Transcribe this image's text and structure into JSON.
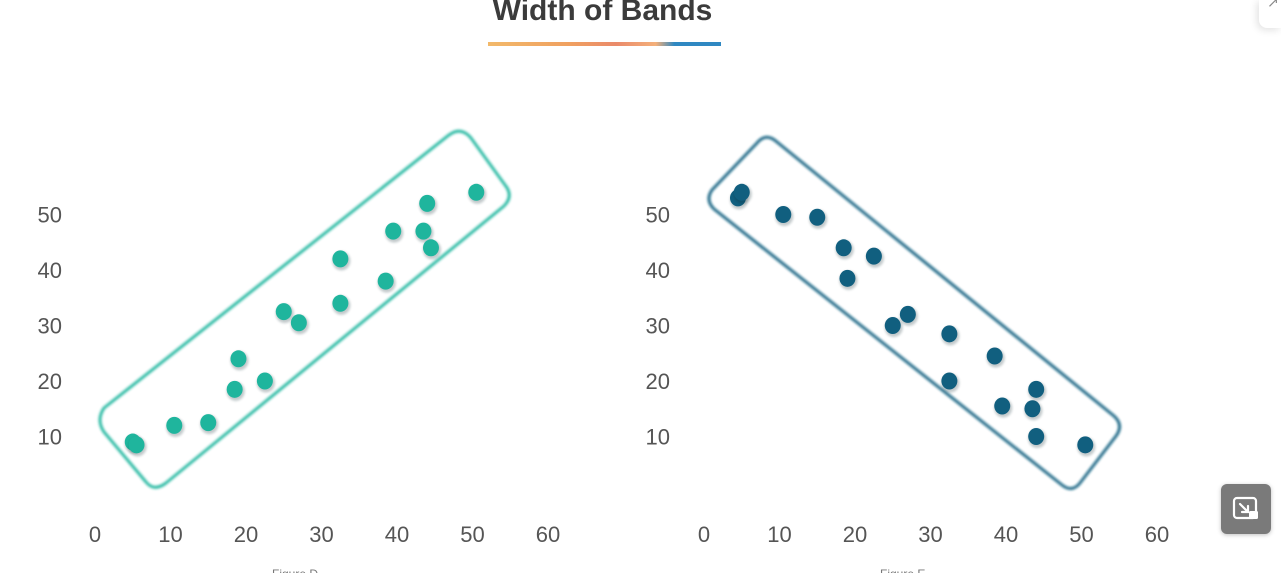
{
  "page": {
    "title": "Width of Bands"
  },
  "colors": {
    "left_chart": "#1fb59d",
    "left_axis": "#35b39a",
    "right_chart": "#115f7f",
    "right_axis": "#1f5d78",
    "title_text": "#3b3b3b"
  },
  "chart_data": [
    {
      "type": "scatter",
      "title": "",
      "caption": "Figure D",
      "xlabel": "",
      "ylabel": "",
      "xlim": [
        0,
        60
      ],
      "ylim": [
        0,
        57
      ],
      "x_ticks": [
        0,
        10,
        20,
        30,
        40,
        50,
        60
      ],
      "y_ticks": [
        10,
        20,
        30,
        40,
        50
      ],
      "grid": false,
      "band": "upward-sloping rounded band enclosing all points",
      "points": [
        {
          "x": 5,
          "y": 9
        },
        {
          "x": 5.5,
          "y": 8.5
        },
        {
          "x": 10.5,
          "y": 12
        },
        {
          "x": 15,
          "y": 12.5
        },
        {
          "x": 18.5,
          "y": 18.5
        },
        {
          "x": 19,
          "y": 24
        },
        {
          "x": 22.5,
          "y": 20
        },
        {
          "x": 25,
          "y": 32.5
        },
        {
          "x": 27,
          "y": 30.5
        },
        {
          "x": 32.5,
          "y": 34
        },
        {
          "x": 32.5,
          "y": 42
        },
        {
          "x": 38.5,
          "y": 38
        },
        {
          "x": 39.5,
          "y": 47
        },
        {
          "x": 43.5,
          "y": 47
        },
        {
          "x": 44,
          "y": 52
        },
        {
          "x": 44.5,
          "y": 44
        },
        {
          "x": 50.5,
          "y": 54
        }
      ]
    },
    {
      "type": "scatter",
      "title": "",
      "caption": "Figure E",
      "xlabel": "",
      "ylabel": "",
      "xlim": [
        0,
        60
      ],
      "ylim": [
        0,
        57
      ],
      "x_ticks": [
        0,
        10,
        20,
        30,
        40,
        50,
        60
      ],
      "y_ticks": [
        10,
        20,
        30,
        40,
        50
      ],
      "grid": false,
      "band": "downward-sloping rounded band enclosing all points",
      "points": [
        {
          "x": 4.5,
          "y": 53
        },
        {
          "x": 5,
          "y": 54
        },
        {
          "x": 10.5,
          "y": 50
        },
        {
          "x": 15,
          "y": 49.5
        },
        {
          "x": 18.5,
          "y": 44
        },
        {
          "x": 19,
          "y": 38.5
        },
        {
          "x": 22.5,
          "y": 42.5
        },
        {
          "x": 25,
          "y": 30
        },
        {
          "x": 27,
          "y": 32
        },
        {
          "x": 32.5,
          "y": 28.5
        },
        {
          "x": 32.5,
          "y": 20
        },
        {
          "x": 38.5,
          "y": 24.5
        },
        {
          "x": 39.5,
          "y": 15.5
        },
        {
          "x": 43.5,
          "y": 15
        },
        {
          "x": 44,
          "y": 18.5
        },
        {
          "x": 44,
          "y": 10
        },
        {
          "x": 50.5,
          "y": 8.5
        }
      ]
    }
  ]
}
